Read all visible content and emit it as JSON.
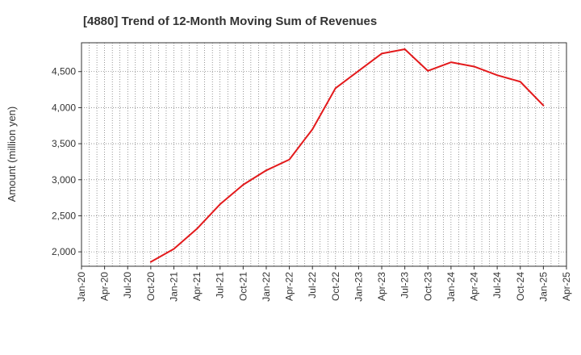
{
  "title": "[4880]  Trend of 12-Month Moving Sum of Revenues",
  "colors": {
    "line": "#e31a1c",
    "grid": "#555555",
    "axis": "#333333",
    "text": "#333333"
  },
  "chart_data": {
    "type": "line",
    "title": "[4880]  Trend of 12-Month Moving Sum of Revenues",
    "xlabel": "",
    "ylabel": "Amount (million yen)",
    "ylim": [
      1800,
      4900
    ],
    "yticks": [
      2000,
      2500,
      3000,
      3500,
      4000,
      4500
    ],
    "ytick_labels": [
      "2,000",
      "2,500",
      "3,000",
      "3,500",
      "4,000",
      "4,500"
    ],
    "x_tick_labels": [
      "Jan-20",
      "Apr-20",
      "Jul-20",
      "Oct-20",
      "Jan-21",
      "Apr-21",
      "Jul-21",
      "Oct-21",
      "Jan-22",
      "Apr-22",
      "Jul-22",
      "Oct-22",
      "Jan-23",
      "Apr-23",
      "Jul-23",
      "Oct-23",
      "Jan-24",
      "Apr-24",
      "Jul-24",
      "Oct-24",
      "Jan-25",
      "Apr-25"
    ],
    "grid": true,
    "legend": "none",
    "series": [
      {
        "x": [
          "Oct-20",
          "Jan-21",
          "Apr-21",
          "Jul-21",
          "Oct-21",
          "Jan-22",
          "Apr-22",
          "Jul-22",
          "Oct-22",
          "Jan-23",
          "Apr-23",
          "Jul-23",
          "Oct-23",
          "Jan-24",
          "Apr-24",
          "Jul-24",
          "Oct-24",
          "Jan-25"
        ],
        "values": [
          1860,
          2040,
          2320,
          2660,
          2930,
          3130,
          3280,
          3700,
          4270,
          4510,
          4750,
          4810,
          4510,
          4630,
          4570,
          4450,
          4360,
          4030
        ]
      }
    ]
  }
}
